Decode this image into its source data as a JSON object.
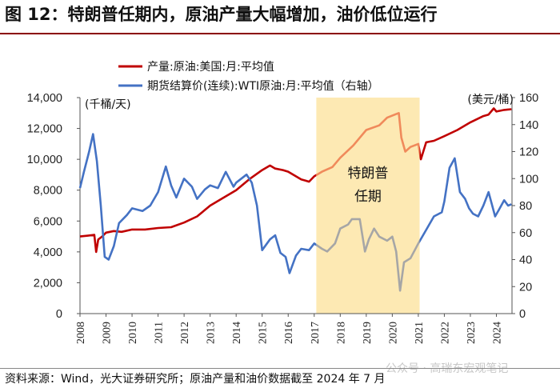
{
  "header": {
    "title": "图 12：特朗普任期内，原油产量大幅增加，油价低位运行"
  },
  "footer": {
    "source": "资料来源：Wind，光大证券研究所；原油产量和油价数据截至 2024 年 7 月"
  },
  "watermark": {
    "text": "公众号 · 高瑞东宏观笔记"
  },
  "colors": {
    "production": "#c00000",
    "production_highlight": "#f08a5b",
    "price": "#4472c4",
    "price_highlight": "#a6a6a6",
    "band": "#fde9b3"
  },
  "chart_data": {
    "type": "line",
    "title": "",
    "ylabel_left": "(千桶/天)",
    "ylabel_right": "(美元/桶)",
    "ylim_left": [
      0,
      14000
    ],
    "ylim_right": [
      0,
      160
    ],
    "xlim": [
      2008.0,
      2024.6
    ],
    "yticks_left": [
      "0",
      "2,000",
      "4,000",
      "6,000",
      "8,000",
      "10,000",
      "12,000",
      "14,000"
    ],
    "yticks_right": [
      "0",
      "20",
      "40",
      "60",
      "80",
      "100",
      "120",
      "140",
      "160"
    ],
    "xticks": [
      "2008",
      "2009",
      "2010",
      "2011",
      "2012",
      "2013",
      "2014",
      "2015",
      "2016",
      "2017",
      "2018",
      "2019",
      "2020",
      "2021",
      "2022",
      "2023",
      "2024"
    ],
    "annotation": {
      "label_line1": "特朗普",
      "label_line2": "任期",
      "start": 2017.08,
      "end": 2021.05
    },
    "series": [
      {
        "name": "产量:原油:美国:月:平均值",
        "axis": "left",
        "points": [
          [
            2008.0,
            5000
          ],
          [
            2008.3,
            5050
          ],
          [
            2008.55,
            5100
          ],
          [
            2008.62,
            4000
          ],
          [
            2008.7,
            4800
          ],
          [
            2008.85,
            5000
          ],
          [
            2009.0,
            5250
          ],
          [
            2009.3,
            5350
          ],
          [
            2009.6,
            5300
          ],
          [
            2010.0,
            5450
          ],
          [
            2010.5,
            5450
          ],
          [
            2011.0,
            5550
          ],
          [
            2011.5,
            5600
          ],
          [
            2012.0,
            5900
          ],
          [
            2012.5,
            6300
          ],
          [
            2013.0,
            7000
          ],
          [
            2013.5,
            7500
          ],
          [
            2014.0,
            8000
          ],
          [
            2014.5,
            8700
          ],
          [
            2015.0,
            9300
          ],
          [
            2015.3,
            9600
          ],
          [
            2015.5,
            9400
          ],
          [
            2015.8,
            9300
          ],
          [
            2016.0,
            9200
          ],
          [
            2016.5,
            8700
          ],
          [
            2016.8,
            8550
          ],
          [
            2017.0,
            8900
          ],
          [
            2017.3,
            9200
          ],
          [
            2017.7,
            9500
          ],
          [
            2018.0,
            10100
          ],
          [
            2018.5,
            10900
          ],
          [
            2019.0,
            11900
          ],
          [
            2019.5,
            12200
          ],
          [
            2019.8,
            12700
          ],
          [
            2020.1,
            12900
          ],
          [
            2020.25,
            13000
          ],
          [
            2020.35,
            11400
          ],
          [
            2020.5,
            10500
          ],
          [
            2020.7,
            10800
          ],
          [
            2021.0,
            11000
          ],
          [
            2021.1,
            10000
          ],
          [
            2021.3,
            11100
          ],
          [
            2021.6,
            11200
          ],
          [
            2022.0,
            11500
          ],
          [
            2022.5,
            11900
          ],
          [
            2023.0,
            12400
          ],
          [
            2023.5,
            12800
          ],
          [
            2023.7,
            12900
          ],
          [
            2023.9,
            13300
          ],
          [
            2024.0,
            13100
          ],
          [
            2024.3,
            13200
          ],
          [
            2024.58,
            13250
          ]
        ]
      },
      {
        "name": "期货结算价(连续):WTI原油:月:平均值（右轴）",
        "axis": "right",
        "points": [
          [
            2008.0,
            93
          ],
          [
            2008.15,
            105
          ],
          [
            2008.35,
            120
          ],
          [
            2008.5,
            133
          ],
          [
            2008.65,
            113
          ],
          [
            2008.8,
            80
          ],
          [
            2008.95,
            42
          ],
          [
            2009.1,
            40
          ],
          [
            2009.3,
            50
          ],
          [
            2009.5,
            67
          ],
          [
            2009.8,
            73
          ],
          [
            2010.0,
            78
          ],
          [
            2010.4,
            76
          ],
          [
            2010.7,
            80
          ],
          [
            2011.0,
            90
          ],
          [
            2011.3,
            109
          ],
          [
            2011.5,
            95
          ],
          [
            2011.7,
            86
          ],
          [
            2012.0,
            100
          ],
          [
            2012.3,
            94
          ],
          [
            2012.5,
            85
          ],
          [
            2012.8,
            92
          ],
          [
            2013.0,
            95
          ],
          [
            2013.3,
            93
          ],
          [
            2013.6,
            105
          ],
          [
            2013.9,
            94
          ],
          [
            2014.0,
            97
          ],
          [
            2014.4,
            103
          ],
          [
            2014.6,
            97
          ],
          [
            2014.8,
            80
          ],
          [
            2015.0,
            47
          ],
          [
            2015.3,
            55
          ],
          [
            2015.5,
            58
          ],
          [
            2015.7,
            45
          ],
          [
            2015.9,
            42
          ],
          [
            2016.05,
            30
          ],
          [
            2016.3,
            43
          ],
          [
            2016.5,
            48
          ],
          [
            2016.8,
            47
          ],
          [
            2017.0,
            52
          ],
          [
            2017.3,
            48
          ],
          [
            2017.5,
            46
          ],
          [
            2017.8,
            52
          ],
          [
            2018.0,
            63
          ],
          [
            2018.3,
            66
          ],
          [
            2018.45,
            70
          ],
          [
            2018.75,
            70
          ],
          [
            2018.95,
            46
          ],
          [
            2019.1,
            55
          ],
          [
            2019.3,
            63
          ],
          [
            2019.5,
            57
          ],
          [
            2019.8,
            54
          ],
          [
            2020.0,
            57
          ],
          [
            2020.15,
            46
          ],
          [
            2020.3,
            17
          ],
          [
            2020.45,
            38
          ],
          [
            2020.7,
            41
          ],
          [
            2021.0,
            52
          ],
          [
            2021.3,
            62
          ],
          [
            2021.6,
            72
          ],
          [
            2021.9,
            75
          ],
          [
            2022.0,
            83
          ],
          [
            2022.2,
            108
          ],
          [
            2022.4,
            115
          ],
          [
            2022.6,
            90
          ],
          [
            2022.8,
            85
          ],
          [
            2022.95,
            78
          ],
          [
            2023.1,
            74
          ],
          [
            2023.3,
            72
          ],
          [
            2023.5,
            80
          ],
          [
            2023.7,
            90
          ],
          [
            2023.95,
            72
          ],
          [
            2024.1,
            77
          ],
          [
            2024.3,
            84
          ],
          [
            2024.45,
            80
          ],
          [
            2024.58,
            81
          ]
        ]
      }
    ]
  }
}
